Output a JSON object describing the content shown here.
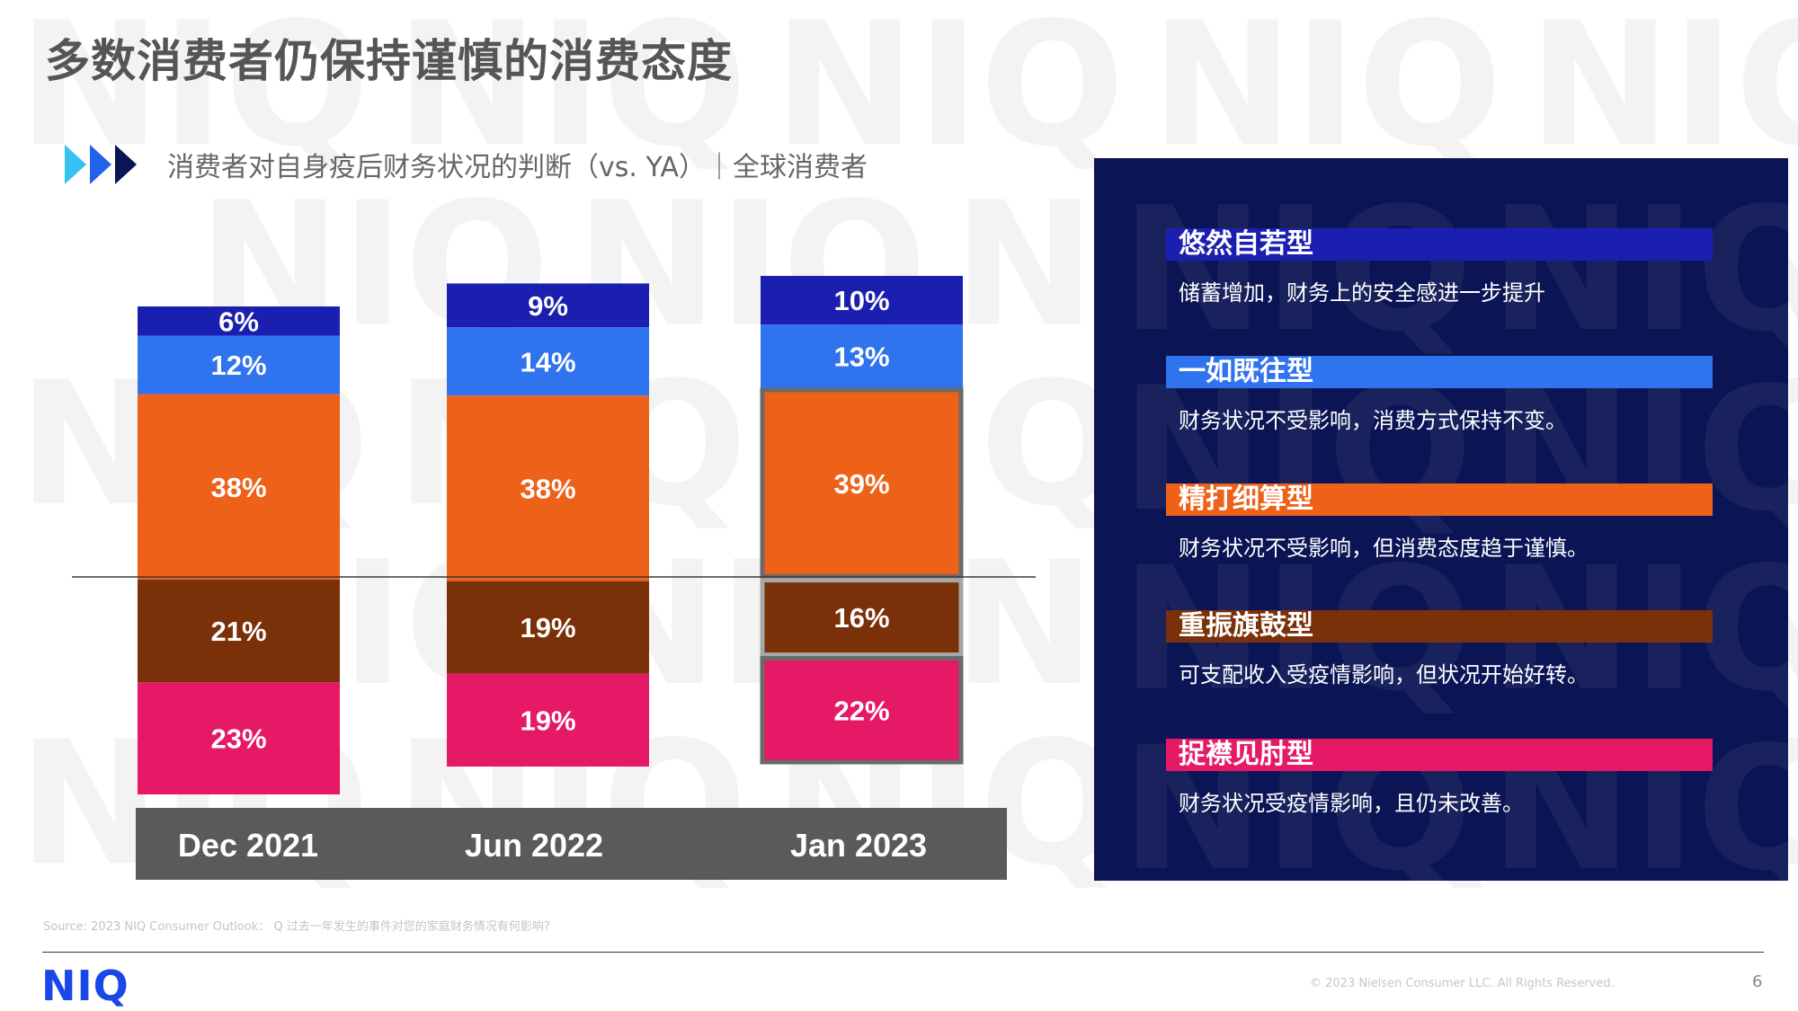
{
  "title": "多数消费者仍保持谨慎的消费态度",
  "subtitle": "消费者对自身疫后财务状况的判断（vs. YA）｜全球消费者",
  "watermark_text": "NIQ",
  "colors": {
    "dark_blue": "#1b1fb0",
    "blue": "#2f73ef",
    "orange": "#ee6119",
    "brown": "#7a3008",
    "pink": "#e51965",
    "panel_bg": "#0b1454",
    "category_band": "#5a5a5a",
    "brand": "#1a47e8"
  },
  "chart_data": {
    "type": "bar",
    "stacked": true,
    "categories": [
      "Dec 2021",
      "Jun 2022",
      "Jan 2023"
    ],
    "series": [
      {
        "name": "悠然自若型",
        "color": "#1b1fb0",
        "values": [
          6,
          9,
          10
        ],
        "labels": [
          "6%",
          "9%",
          "10%"
        ]
      },
      {
        "name": "一如既往型",
        "color": "#2f73ef",
        "values": [
          12,
          14,
          13
        ],
        "labels": [
          "12%",
          "14%",
          "13%"
        ]
      },
      {
        "name": "精打细算型",
        "color": "#ee6119",
        "values": [
          38,
          38,
          39
        ],
        "labels": [
          "38%",
          "38%",
          "39%"
        ]
      },
      {
        "name": "重振旗鼓型",
        "color": "#7a3008",
        "values": [
          21,
          19,
          16
        ],
        "labels": [
          "21%",
          "19%",
          "16%"
        ]
      },
      {
        "name": "捉襟见肘型",
        "color": "#e51965",
        "values": [
          23,
          19,
          22
        ],
        "labels": [
          "23%",
          "19%",
          "22%"
        ]
      }
    ],
    "highlighted_category": "Jan 2023",
    "reference_line": "between 精打细算型 and 重振旗鼓型",
    "legend_placement": "right"
  },
  "legend": [
    {
      "name": "悠然自若型",
      "desc": "储蓄增加，财务上的安全感进一步提升",
      "color": "#1b1fb0"
    },
    {
      "name": "一如既往型",
      "desc": "财务状况不受影响，消费方式保持不变。",
      "color": "#2f73ef"
    },
    {
      "name": "精打细算型",
      "desc": "财务状况不受影响，但消费态度趋于谨慎。",
      "color": "#ee6119"
    },
    {
      "name": "重振旗鼓型",
      "desc": "可支配收入受疫情影响，但状况开始好转。",
      "color": "#7a3008"
    },
    {
      "name": "捉襟见肘型",
      "desc": "财务状况受疫情影响，且仍未改善。",
      "color": "#e51965"
    }
  ],
  "footer": {
    "source": "Source: 2023 NIQ Consumer Outlook： Q 过去一年发生的事件对您的家庭财务情况有何影响?",
    "brand": "NIQ",
    "copyright": "© 2023 Nielsen Consumer LLC. All Rights Reserved.",
    "page_number": "6"
  }
}
